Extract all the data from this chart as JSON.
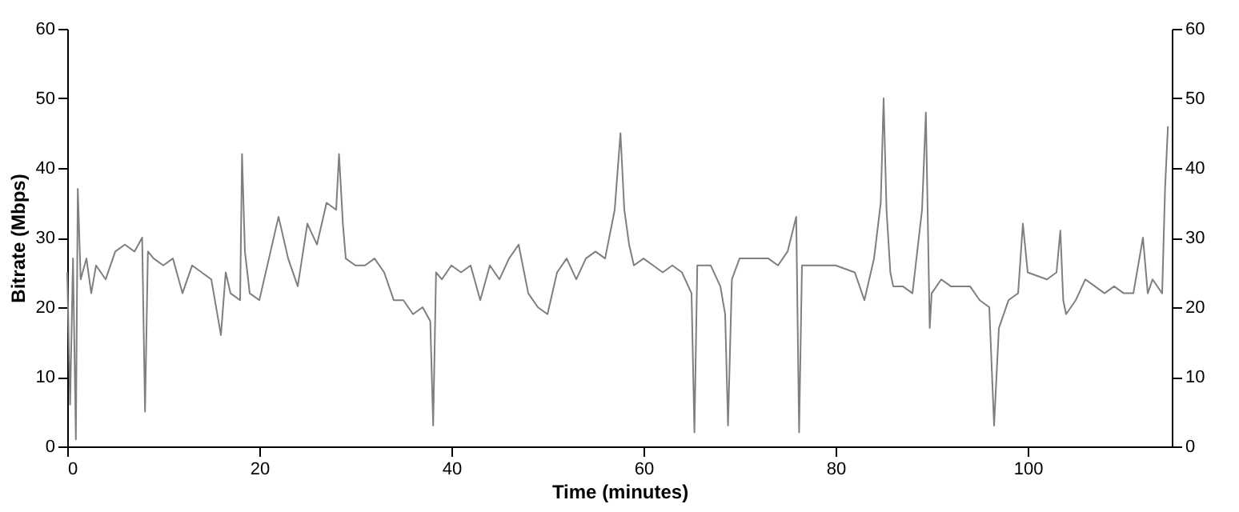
{
  "chart_data": {
    "type": "line",
    "xlabel": "Time (minutes)",
    "ylabel": "Bitrate (Mbps)",
    "xlim": [
      0,
      115
    ],
    "xticks": [
      0,
      20,
      40,
      60,
      80,
      100
    ],
    "ylim": [
      0,
      60
    ],
    "yticks": [
      0,
      10,
      20,
      30,
      40,
      50,
      60
    ],
    "y2lim": [
      0,
      60
    ],
    "y2ticks": [
      0,
      10,
      20,
      30,
      40,
      50,
      60
    ],
    "grid": false,
    "marker": "none",
    "line_style": "solid",
    "x": [
      0,
      0.3,
      0.6,
      0.9,
      1.1,
      1.4,
      2,
      2.5,
      3,
      4,
      5,
      6,
      7,
      7.8,
      8.1,
      8.4,
      9,
      10,
      11,
      12,
      13,
      14,
      15,
      16,
      16.5,
      17,
      18,
      18.2,
      18.5,
      19,
      20,
      21,
      22,
      23,
      24,
      25,
      26,
      27,
      28,
      28.3,
      28.7,
      29,
      30,
      31,
      32,
      33,
      34,
      35,
      36,
      37,
      37.8,
      38.1,
      38.4,
      39,
      40,
      41,
      42,
      43,
      44,
      45,
      46,
      47,
      48,
      49,
      50,
      51,
      52,
      53,
      54,
      55,
      56,
      57,
      57.6,
      58,
      58.5,
      59,
      60,
      61,
      62,
      63,
      64,
      65,
      65.3,
      65.6,
      67,
      68,
      68.5,
      68.8,
      69.2,
      70,
      71,
      73,
      74,
      75,
      75.9,
      76.2,
      76.5,
      78,
      79,
      80,
      82,
      83,
      84,
      84.7,
      85,
      85.3,
      85.7,
      86,
      87,
      88,
      89,
      89.4,
      89.8,
      90,
      91,
      92,
      94,
      95,
      96,
      96.5,
      97,
      98,
      99,
      99.5,
      100,
      102,
      103,
      103.4,
      103.7,
      104,
      105,
      106,
      107,
      108,
      109,
      110,
      111,
      112,
      112.5,
      113,
      114,
      114.3,
      114.6
    ],
    "series": [
      {
        "color": "#7f7f7f",
        "values": [
          25,
          6,
          27,
          1,
          37,
          24,
          27,
          22,
          26,
          24,
          28,
          29,
          28,
          30,
          5,
          28,
          27,
          26,
          27,
          22,
          26,
          25,
          24,
          16,
          25,
          22,
          21,
          42,
          28,
          22,
          21,
          27,
          33,
          27,
          23,
          32,
          29,
          35,
          34,
          42,
          32,
          27,
          26,
          26,
          27,
          25,
          21,
          21,
          19,
          20,
          18,
          3,
          25,
          24,
          26,
          25,
          26,
          21,
          26,
          24,
          27,
          29,
          22,
          20,
          19,
          25,
          27,
          24,
          27,
          28,
          27,
          34,
          45,
          34,
          29,
          26,
          27,
          26,
          25,
          26,
          25,
          22,
          2,
          26,
          26,
          23,
          19,
          3,
          24,
          27,
          27,
          27,
          26,
          28,
          33,
          2,
          26,
          26,
          26,
          26,
          25,
          21,
          27,
          35,
          50,
          34,
          25,
          23,
          23,
          22,
          34,
          48,
          17,
          22,
          24,
          23,
          23,
          21,
          20,
          3,
          17,
          21,
          22,
          32,
          25,
          24,
          25,
          31,
          21,
          19,
          21,
          24,
          23,
          22,
          23,
          22,
          22,
          30,
          22,
          24,
          22,
          37,
          46
        ]
      }
    ]
  }
}
